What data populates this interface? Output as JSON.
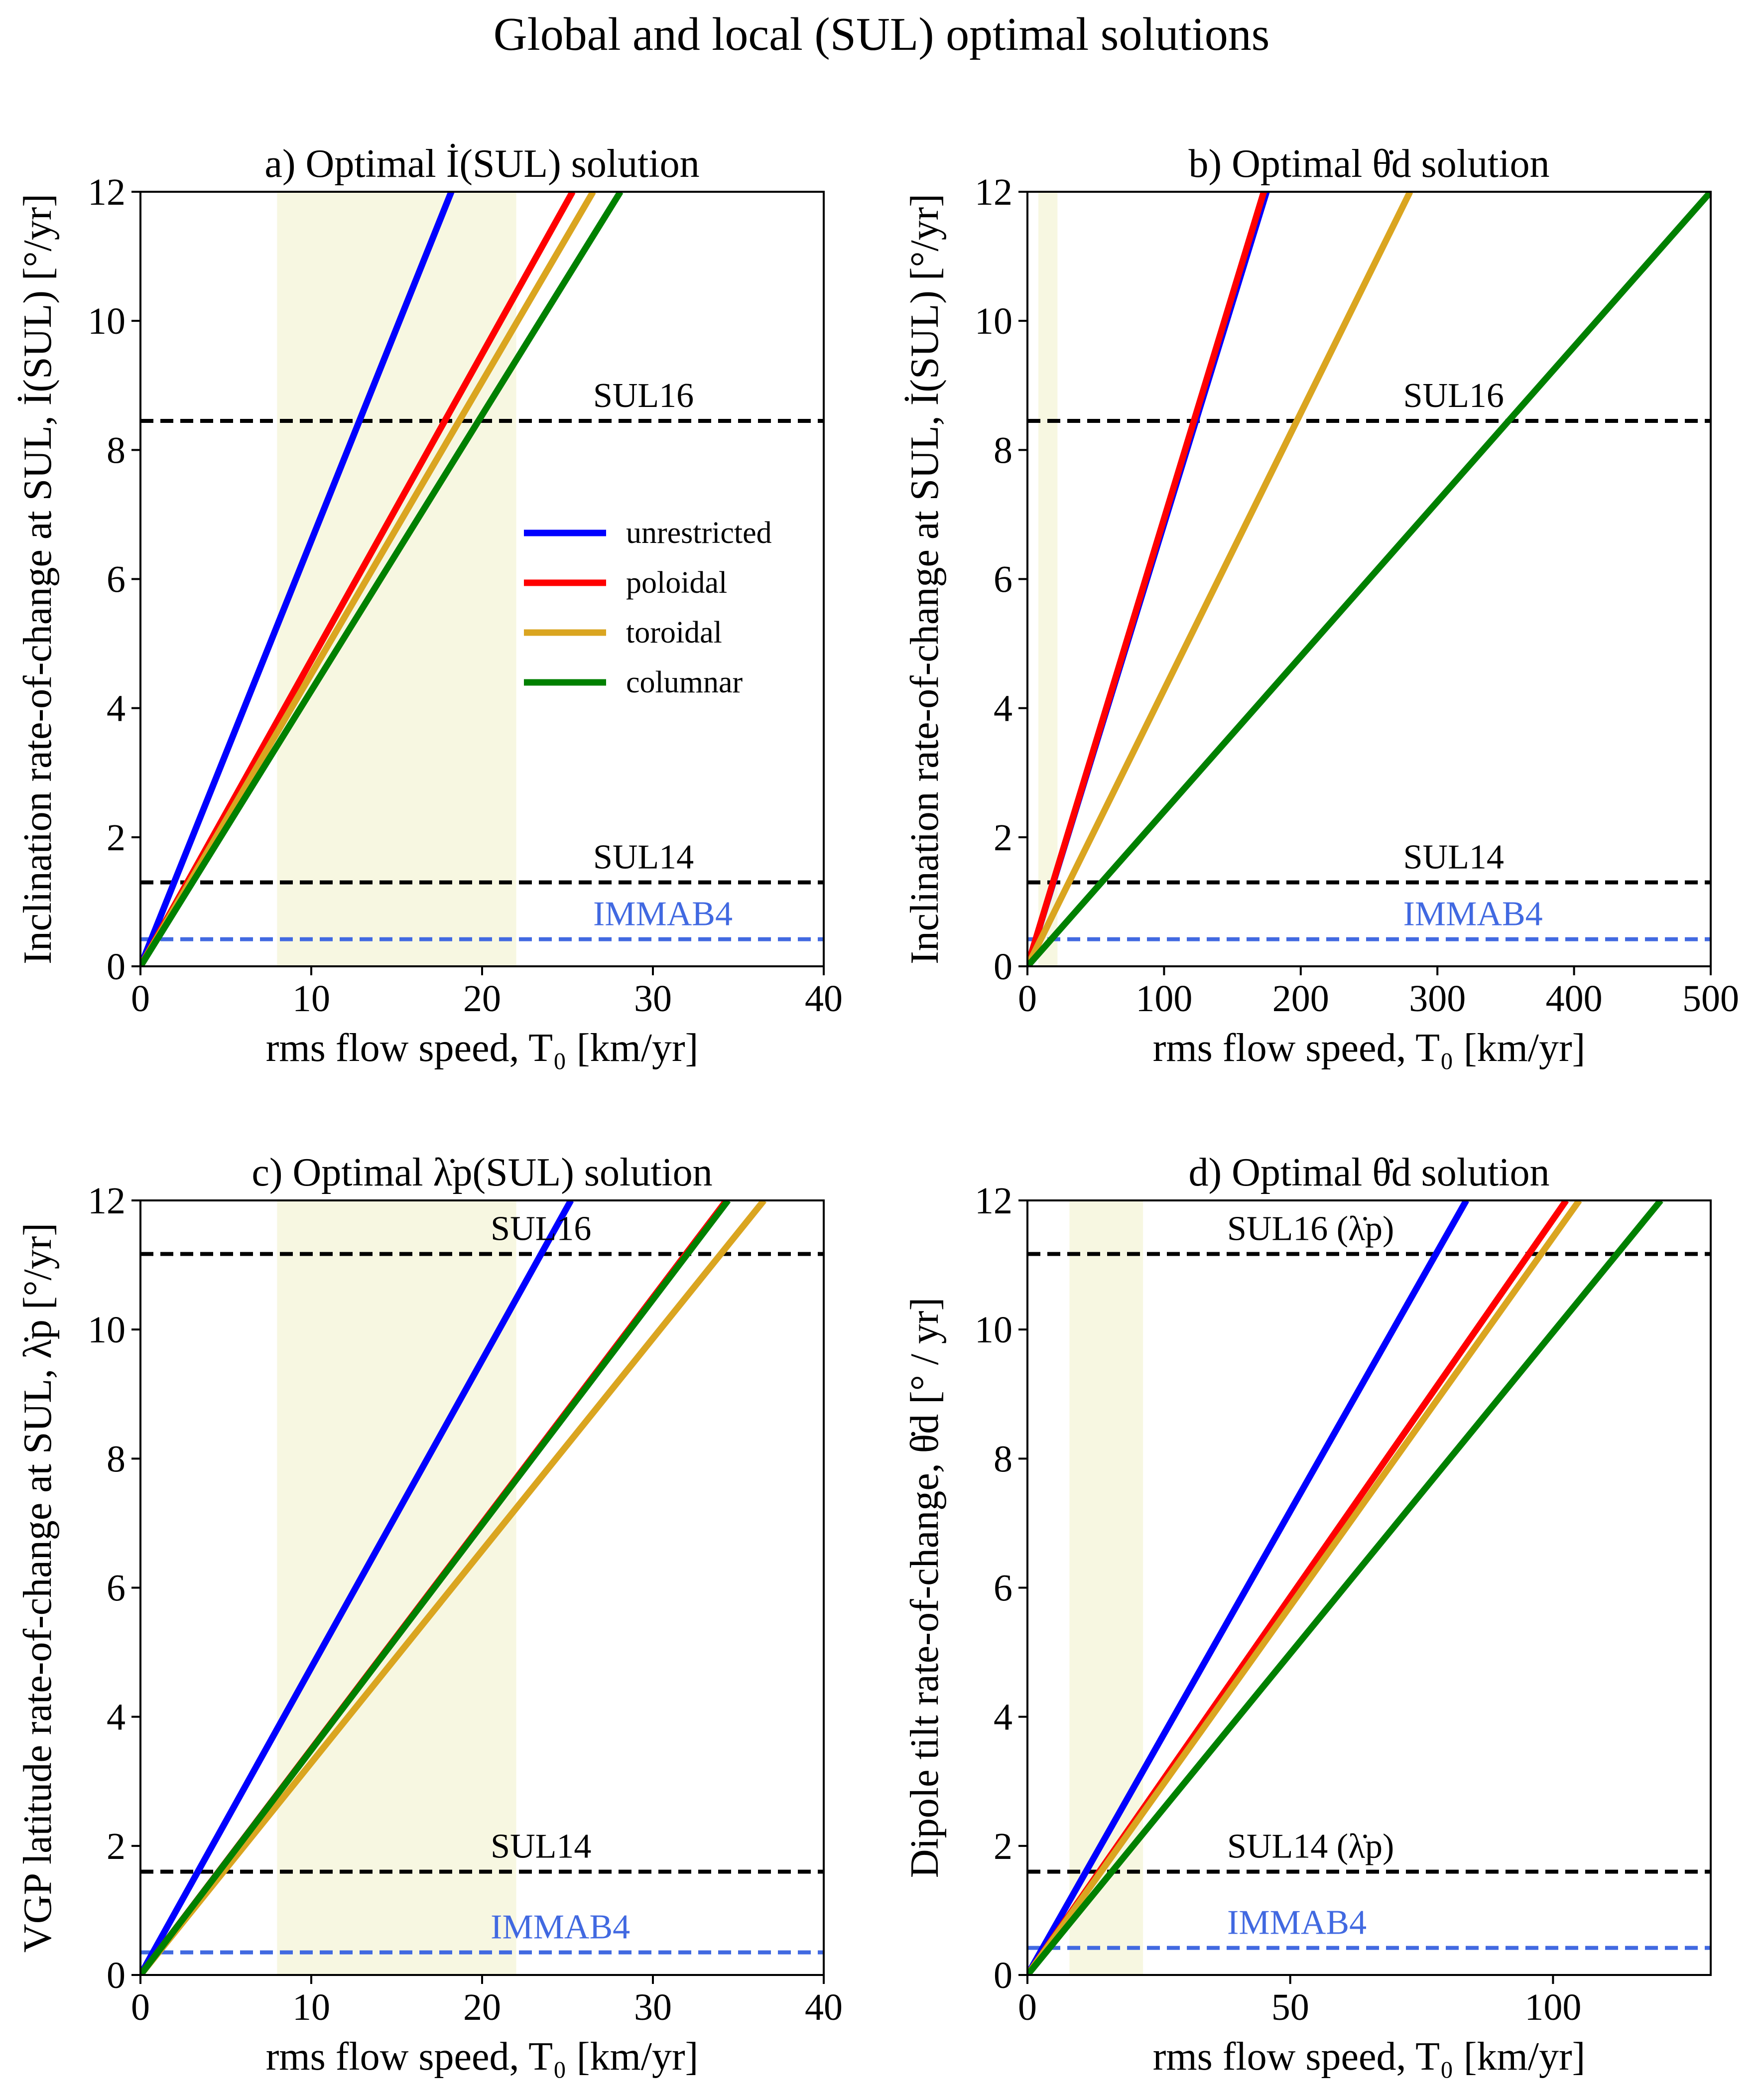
{
  "figure_title": "Global and local (SUL) optimal solutions",
  "legend": [
    {
      "label": "unrestricted",
      "color": "#0000ff"
    },
    {
      "label": "poloidal",
      "color": "#ff0000"
    },
    {
      "label": "toroidal",
      "color": "#daa520"
    },
    {
      "label": "columnar",
      "color": "#008000"
    }
  ],
  "colors": {
    "reference_line": "#000000",
    "immab4": "#4169e1",
    "shade": "#f7f7e1"
  },
  "chart_data": [
    {
      "id": "a",
      "type": "line",
      "title": "a) Optimal İ(SUL) solution",
      "xlabel": "rms flow speed, T₀ [km/yr]",
      "ylabel": "Inclination rate-of-change at SUL, İ(SUL) [°/yr]",
      "xlim": [
        0,
        40
      ],
      "ylim": [
        0,
        12
      ],
      "xticks": [
        0,
        10,
        20,
        30,
        40
      ],
      "yticks": [
        0,
        2,
        4,
        6,
        8,
        10,
        12
      ],
      "shaded_x": [
        8,
        22
      ],
      "series": [
        {
          "name": "unrestricted",
          "x": [
            0,
            18.2
          ],
          "y": [
            0,
            12
          ]
        },
        {
          "name": "poloidal",
          "x": [
            0,
            25.3
          ],
          "y": [
            0,
            12
          ]
        },
        {
          "name": "toroidal",
          "x": [
            0,
            26.5
          ],
          "y": [
            0,
            12
          ]
        },
        {
          "name": "columnar",
          "x": [
            0,
            28.1
          ],
          "y": [
            0,
            12
          ]
        }
      ],
      "hlines": [
        {
          "label": "SUL16",
          "y": 8.45,
          "kind": "ref"
        },
        {
          "label": "SUL14",
          "y": 1.3,
          "kind": "ref"
        },
        {
          "label": "IMMAB4",
          "y": 0.42,
          "kind": "immab"
        }
      ],
      "legend": true
    },
    {
      "id": "b",
      "type": "line",
      "title": "b) Optimal θ̇d solution",
      "xlabel": "rms flow speed, T₀ [km/yr]",
      "ylabel": "Inclination rate-of-change at SUL, İ(SUL) [°/yr]",
      "xlim": [
        0,
        500
      ],
      "ylim": [
        0,
        12
      ],
      "xticks": [
        0,
        100,
        200,
        300,
        400,
        500
      ],
      "yticks": [
        0,
        2,
        4,
        6,
        8,
        10,
        12
      ],
      "shaded_x": [
        8,
        22
      ],
      "series": [
        {
          "name": "unrestricted",
          "x": [
            0,
            175
          ],
          "y": [
            0,
            12
          ]
        },
        {
          "name": "poloidal",
          "x": [
            0,
            173
          ],
          "y": [
            0,
            12
          ]
        },
        {
          "name": "toroidal",
          "x": [
            0,
            280
          ],
          "y": [
            0,
            12
          ]
        },
        {
          "name": "columnar",
          "x": [
            0,
            500
          ],
          "y": [
            0,
            12
          ]
        }
      ],
      "hlines": [
        {
          "label": "SUL16",
          "y": 8.45,
          "kind": "ref"
        },
        {
          "label": "SUL14",
          "y": 1.3,
          "kind": "ref"
        },
        {
          "label": "IMMAB4",
          "y": 0.42,
          "kind": "immab"
        }
      ],
      "legend": false
    },
    {
      "id": "c",
      "type": "line",
      "title": "c) Optimal λ̇p(SUL) solution",
      "xlabel": "rms flow speed, T₀ [km/yr]",
      "ylabel": "VGP latitude rate-of-change at SUL, λ̇p [°/yr]",
      "xlim": [
        0,
        40
      ],
      "ylim": [
        0,
        12
      ],
      "xticks": [
        0,
        10,
        20,
        30,
        40
      ],
      "yticks": [
        0,
        2,
        4,
        6,
        8,
        10,
        12
      ],
      "shaded_x": [
        8,
        22
      ],
      "series": [
        {
          "name": "unrestricted",
          "x": [
            0,
            25.2
          ],
          "y": [
            0,
            12
          ]
        },
        {
          "name": "poloidal",
          "x": [
            0,
            34.3
          ],
          "y": [
            0,
            12
          ]
        },
        {
          "name": "toroidal",
          "x": [
            0,
            36.5
          ],
          "y": [
            0,
            12
          ]
        },
        {
          "name": "columnar",
          "x": [
            0,
            34.4
          ],
          "y": [
            0,
            12
          ]
        }
      ],
      "hlines": [
        {
          "label": "SUL16",
          "y": 11.17,
          "kind": "ref"
        },
        {
          "label": "SUL14",
          "y": 1.6,
          "kind": "ref"
        },
        {
          "label": "IMMAB4",
          "y": 0.35,
          "kind": "immab"
        }
      ],
      "legend": false
    },
    {
      "id": "d",
      "type": "line",
      "title": "d) Optimal θ̇d solution",
      "xlabel": "rms flow speed, T₀ [km/yr]",
      "ylabel": "Dipole tilt rate-of-change, θ̇d [° / yr]",
      "xlim": [
        0,
        130
      ],
      "ylim": [
        0,
        12
      ],
      "xticks": [
        0,
        50,
        100
      ],
      "yticks": [
        0,
        2,
        4,
        6,
        8,
        10,
        12
      ],
      "shaded_x": [
        8,
        22
      ],
      "series": [
        {
          "name": "unrestricted",
          "x": [
            0,
            83.5
          ],
          "y": [
            0,
            12
          ]
        },
        {
          "name": "poloidal",
          "x": [
            0,
            102.5
          ],
          "y": [
            0,
            12
          ]
        },
        {
          "name": "toroidal",
          "x": [
            0,
            105
          ],
          "y": [
            0,
            12
          ]
        },
        {
          "name": "columnar",
          "x": [
            0,
            120.5
          ],
          "y": [
            0,
            12
          ]
        }
      ],
      "hlines": [
        {
          "label": "SUL16 (λ̇p)",
          "y": 11.17,
          "kind": "ref"
        },
        {
          "label": "SUL14 (λ̇p)",
          "y": 1.6,
          "kind": "ref"
        },
        {
          "label": "IMMAB4",
          "y": 0.42,
          "kind": "immab"
        }
      ],
      "legend": false
    }
  ]
}
